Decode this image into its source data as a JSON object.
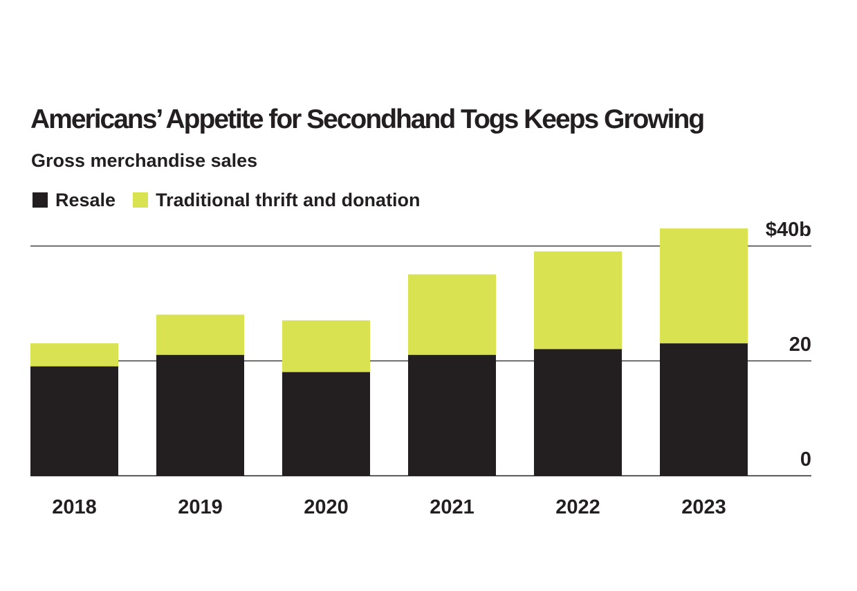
{
  "chart_data": {
    "type": "bar",
    "stacked": true,
    "title": "Americans’ Appetite for Secondhand Togs Keeps Growing",
    "subtitle": "Gross merchandise sales",
    "categories": [
      "2018",
      "2019",
      "2020",
      "2021",
      "2022",
      "2023"
    ],
    "series": [
      {
        "name": "Resale",
        "color": "#231f20",
        "values": [
          19,
          21,
          18,
          21,
          22,
          23
        ]
      },
      {
        "name": "Traditional thrift and donation",
        "color": "#d9e250",
        "values": [
          4,
          7,
          9,
          14,
          17,
          20
        ]
      }
    ],
    "y_ticks": [
      {
        "value": 0,
        "label": "0"
      },
      {
        "value": 20,
        "label": "20"
      },
      {
        "value": 40,
        "label": "$40b"
      }
    ],
    "ylim": [
      0,
      40
    ],
    "axis_side": "right",
    "grid": true,
    "legend_position": "top-left"
  }
}
